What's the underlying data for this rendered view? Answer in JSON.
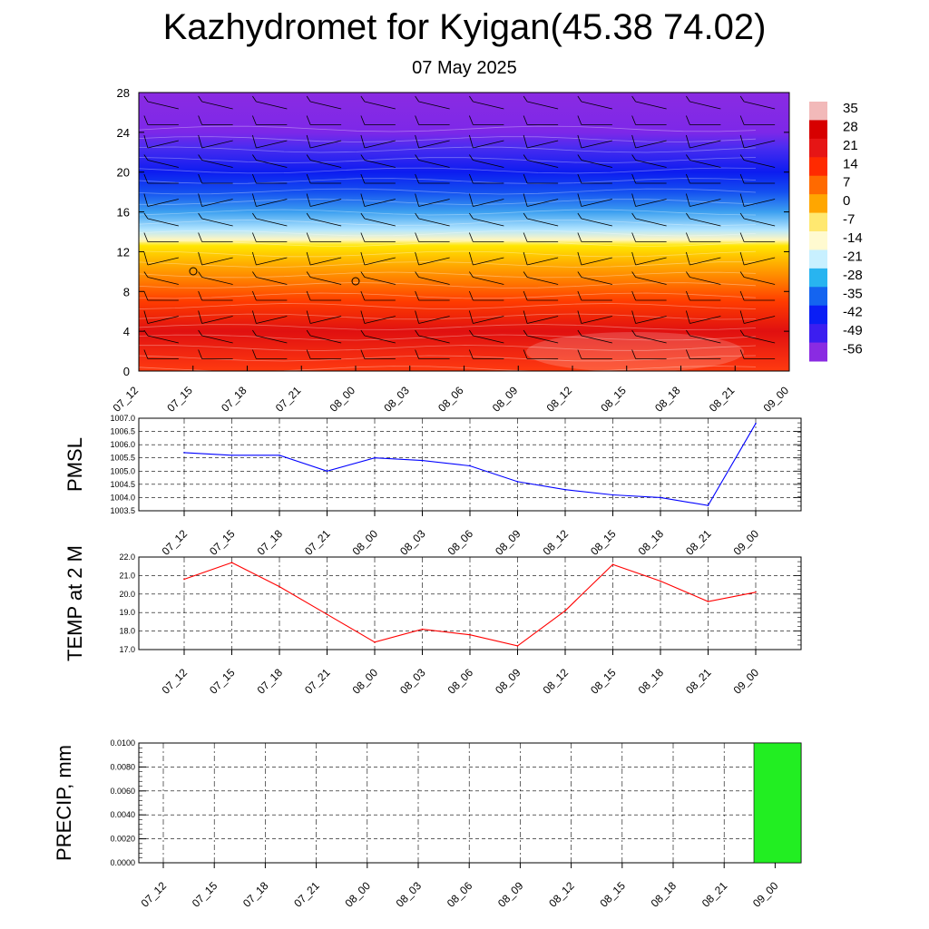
{
  "title": "Kazhydromet for Kyigan(45.38 74.02)",
  "subtitle": "07 May 2025",
  "chart_data": [
    {
      "type": "heatmap",
      "description_axes": "time-height cross-section",
      "y_ticks": [
        "0",
        "4",
        "8",
        "12",
        "16",
        "20",
        "24",
        "28"
      ],
      "ylim": [
        0,
        28
      ],
      "x_ticks": [
        "07_12",
        "07_15",
        "07_18",
        "07_21",
        "08_00",
        "08_03",
        "08_06",
        "08_09",
        "08_12",
        "08_15",
        "08_18",
        "08_21",
        "09_00"
      ],
      "colorbar": {
        "labels": [
          "35",
          "28",
          "21",
          "14",
          "7",
          "0",
          "-7",
          "-14",
          "-21",
          "-28",
          "-35",
          "-42",
          "-49",
          "-56"
        ],
        "colors": [
          "#f2b9b9",
          "#d70000",
          "#e61515",
          "#ff2a00",
          "#ff6a00",
          "#ffa600",
          "#ffe870",
          "#fffad0",
          "#c8f0ff",
          "#28b4f0",
          "#1464f0",
          "#0a1ef5",
          "#3c1ef0",
          "#8a2be2"
        ]
      },
      "profile": [
        {
          "y": 28,
          "color": "#8a2be2"
        },
        {
          "y": 24,
          "color": "#7d28e8"
        },
        {
          "y": 22.5,
          "color": "#4a2cf0"
        },
        {
          "y": 20,
          "color": "#0c1cf0"
        },
        {
          "y": 18,
          "color": "#1450f0"
        },
        {
          "y": 16,
          "color": "#3ca0f0"
        },
        {
          "y": 14.2,
          "color": "#b4e6ff"
        },
        {
          "y": 13.2,
          "color": "#fff6c0"
        },
        {
          "y": 12.6,
          "color": "#ffe600"
        },
        {
          "y": 11,
          "color": "#ffb400"
        },
        {
          "y": 9,
          "color": "#ff7a00"
        },
        {
          "y": 7,
          "color": "#ff3c00"
        },
        {
          "y": 4,
          "color": "#e01010"
        },
        {
          "y": 0,
          "color": "#ff3a10"
        }
      ]
    },
    {
      "type": "line",
      "ylabel": "PMSL",
      "x": [
        "07_12",
        "07_15",
        "07_18",
        "07_21",
        "08_00",
        "08_03",
        "08_06",
        "08_09",
        "08_12",
        "08_15",
        "08_18",
        "08_21",
        "09_00"
      ],
      "y_ticks": [
        "1003.5",
        "1004.0",
        "1004.5",
        "1005.0",
        "1005.5",
        "1006.0",
        "1006.5",
        "1007.0"
      ],
      "ylim": [
        1003.5,
        1007.0
      ],
      "values": [
        1005.7,
        1005.6,
        1005.6,
        1005.0,
        1005.5,
        1005.4,
        1005.2,
        1004.6,
        1004.3,
        1004.1,
        1004.0,
        1003.7,
        1006.8
      ],
      "color": "#0000ff"
    },
    {
      "type": "line",
      "ylabel": "TEMP at 2 M",
      "x": [
        "07_12",
        "07_15",
        "07_18",
        "07_21",
        "08_00",
        "08_03",
        "08_06",
        "08_09",
        "08_12",
        "08_15",
        "08_18",
        "08_21",
        "09_00"
      ],
      "y_ticks": [
        "17.0",
        "18.0",
        "19.0",
        "20.0",
        "21.0",
        "22.0"
      ],
      "ylim": [
        17.0,
        22.0
      ],
      "values": [
        20.8,
        21.7,
        20.4,
        18.9,
        17.4,
        18.1,
        17.8,
        17.2,
        19.1,
        21.6,
        20.7,
        19.6,
        20.1
      ],
      "color": "#ff0000"
    },
    {
      "type": "bar",
      "ylabel": "PRECIP, mm",
      "categories": [
        "07_12",
        "07_15",
        "07_18",
        "07_21",
        "08_00",
        "08_03",
        "08_06",
        "08_09",
        "08_12",
        "08_15",
        "08_18",
        "08_21",
        "09_00"
      ],
      "y_ticks": [
        "0.0000",
        "0.0020",
        "0.0040",
        "0.0060",
        "0.0080",
        "0.0100"
      ],
      "ylim": [
        0,
        0.01
      ],
      "values": [
        0,
        0,
        0,
        0,
        0,
        0,
        0,
        0,
        0,
        0,
        0,
        0,
        0.01
      ],
      "color": "#22ee22"
    }
  ]
}
